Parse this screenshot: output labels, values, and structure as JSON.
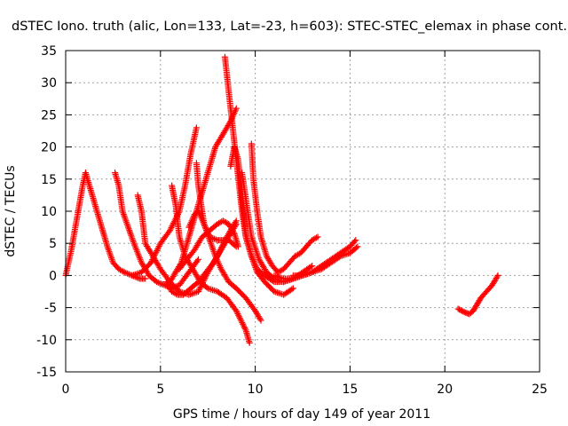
{
  "chart_data": {
    "type": "scatter",
    "title": "dSTEC Iono. truth (alic, Lon=133, Lat=-23, h=603): STEC-STEC_elemax in phase cont.",
    "xlabel": "GPS time / hours of day 149 of year 2011",
    "ylabel": "dSTEC  / TECUs",
    "xlim": [
      0,
      25
    ],
    "ylim": [
      -15,
      35
    ],
    "xticks": [
      0,
      5,
      10,
      15,
      20,
      25
    ],
    "yticks": [
      -15,
      -10,
      -5,
      0,
      5,
      10,
      15,
      20,
      25,
      30,
      35
    ],
    "grid": true,
    "marker": "+",
    "color": "#ff0000",
    "series": [
      {
        "x": [
          0.0,
          0.3,
          0.6,
          0.9,
          1.05,
          1.3,
          1.6,
          1.9,
          2.2,
          2.5,
          2.8,
          3.1,
          3.5,
          3.9,
          4.2
        ],
        "y": [
          0.0,
          4.0,
          9.0,
          14.0,
          16.0,
          13.5,
          10.5,
          7.5,
          4.5,
          2.0,
          1.0,
          0.5,
          0.0,
          -0.5,
          -0.5
        ]
      },
      {
        "x": [
          2.6,
          2.8,
          3.0,
          3.3,
          3.6,
          4.0,
          4.4,
          4.8,
          5.2,
          5.6,
          6.0,
          6.5,
          7.0
        ],
        "y": [
          16.0,
          14.0,
          10.0,
          7.5,
          5.0,
          2.0,
          0.0,
          -1.0,
          -1.5,
          -2.0,
          -1.5,
          0.5,
          2.5
        ]
      },
      {
        "x": [
          3.8,
          4.0,
          4.2,
          4.6,
          5.0,
          5.5,
          6.0,
          6.5,
          7.0,
          7.5,
          8.0,
          8.5,
          9.0
        ],
        "y": [
          12.5,
          10.0,
          5.0,
          3.0,
          1.0,
          -1.0,
          -2.5,
          -3.0,
          -2.5,
          0.5,
          3.0,
          6.0,
          8.5
        ]
      },
      {
        "x": [
          3.5,
          4.0,
          4.5,
          5.0,
          5.5,
          6.0,
          6.3,
          6.6,
          6.9
        ],
        "y": [
          0.0,
          0.5,
          2.0,
          5.0,
          7.0,
          10.0,
          14.0,
          19.0,
          23.0
        ]
      },
      {
        "x": [
          5.5,
          5.8,
          6.1,
          6.4,
          6.7,
          7.0,
          7.3,
          7.6,
          7.9,
          8.3,
          8.7,
          9.0
        ],
        "y": [
          -1.0,
          0.5,
          2.0,
          5.0,
          8.0,
          11.0,
          14.0,
          17.0,
          20.0,
          22.0,
          24.0,
          26.0
        ]
      },
      {
        "x": [
          5.3,
          5.6,
          5.9,
          6.2,
          6.6,
          7.0,
          7.4,
          7.8,
          8.2,
          8.6,
          9.0
        ],
        "y": [
          -1.0,
          -2.5,
          -3.0,
          -3.0,
          -2.0,
          -1.0,
          0.5,
          2.0,
          4.0,
          6.0,
          8.0
        ]
      },
      {
        "x": [
          5.6,
          5.8,
          6.0,
          6.3,
          6.7,
          7.1,
          7.5,
          8.0,
          8.5,
          9.0,
          9.5,
          9.7
        ],
        "y": [
          14.0,
          11.0,
          6.0,
          3.0,
          1.0,
          -1.0,
          -2.0,
          -2.5,
          -3.5,
          -5.5,
          -8.5,
          -10.5
        ]
      },
      {
        "x": [
          6.5,
          6.8,
          7.0,
          7.3,
          7.6,
          7.9,
          8.2,
          8.6,
          9.0,
          9.5,
          10.0,
          10.3
        ],
        "y": [
          7.5,
          9.5,
          10.0,
          8.0,
          5.5,
          3.0,
          1.0,
          -1.0,
          -2.0,
          -3.5,
          -5.5,
          -7.0
        ]
      },
      {
        "x": [
          6.9,
          7.0,
          7.3,
          7.6,
          8.0,
          8.3,
          8.6,
          9.0
        ],
        "y": [
          17.5,
          14.0,
          8.0,
          6.0,
          5.5,
          5.5,
          5.5,
          4.5
        ]
      },
      {
        "x": [
          6.0,
          6.4,
          6.8,
          7.2,
          7.6,
          8.0,
          8.3,
          8.6,
          8.9,
          9.1
        ],
        "y": [
          1.0,
          2.5,
          4.0,
          6.0,
          7.0,
          8.0,
          8.5,
          8.0,
          6.5,
          4.5
        ]
      },
      {
        "x": [
          8.4,
          8.55,
          8.7,
          8.85,
          9.0,
          9.15,
          9.3,
          9.5,
          9.8,
          10.1,
          10.5,
          11.0,
          11.5,
          12.0,
          12.5
        ],
        "y": [
          34.0,
          30.0,
          26.0,
          22.0,
          18.0,
          14.0,
          10.0,
          6.0,
          3.0,
          1.0,
          0.0,
          -1.0,
          -1.0,
          -0.5,
          0.0
        ]
      },
      {
        "x": [
          8.7,
          8.9,
          9.1,
          9.3,
          9.5,
          9.8,
          10.1,
          10.5,
          11.0,
          11.5,
          12.0
        ],
        "y": [
          17.0,
          20.0,
          18.0,
          12.0,
          6.5,
          3.0,
          0.5,
          -1.0,
          -2.5,
          -3.0,
          -2.0
        ]
      },
      {
        "x": [
          9.3,
          9.5,
          9.8,
          10.2,
          10.6,
          11.0,
          11.5,
          12.0,
          12.5,
          13.0
        ],
        "y": [
          16.0,
          12.0,
          6.0,
          2.5,
          0.5,
          -0.5,
          -1.0,
          -0.5,
          0.5,
          1.5
        ]
      },
      {
        "x": [
          9.8,
          9.9,
          10.1,
          10.3,
          10.6,
          10.9,
          11.2,
          11.5,
          11.8,
          12.1,
          12.4,
          12.7,
          13.0,
          13.3
        ],
        "y": [
          20.5,
          15.0,
          10.0,
          6.0,
          3.0,
          1.5,
          0.5,
          1.0,
          2.0,
          3.0,
          3.5,
          4.5,
          5.5,
          6.0
        ]
      },
      {
        "x": [
          11.0,
          11.5,
          12.0,
          12.5,
          13.0,
          13.5,
          14.0,
          14.5,
          15.0,
          15.3
        ],
        "y": [
          0.0,
          -0.5,
          -0.5,
          0.0,
          0.5,
          1.5,
          2.5,
          3.5,
          4.5,
          5.5
        ]
      },
      {
        "x": [
          12.0,
          12.5,
          13.0,
          13.5,
          14.0,
          14.5,
          15.0,
          15.4
        ],
        "y": [
          0.0,
          0.0,
          0.5,
          1.0,
          2.0,
          3.0,
          3.5,
          4.5
        ]
      },
      {
        "x": [
          20.7,
          20.9,
          21.1,
          21.3,
          21.5,
          21.7,
          21.9,
          22.2,
          22.5,
          22.8
        ],
        "y": [
          -5.2,
          -5.5,
          -5.8,
          -6.0,
          -5.5,
          -4.5,
          -3.5,
          -2.5,
          -1.5,
          0.0
        ]
      }
    ]
  }
}
